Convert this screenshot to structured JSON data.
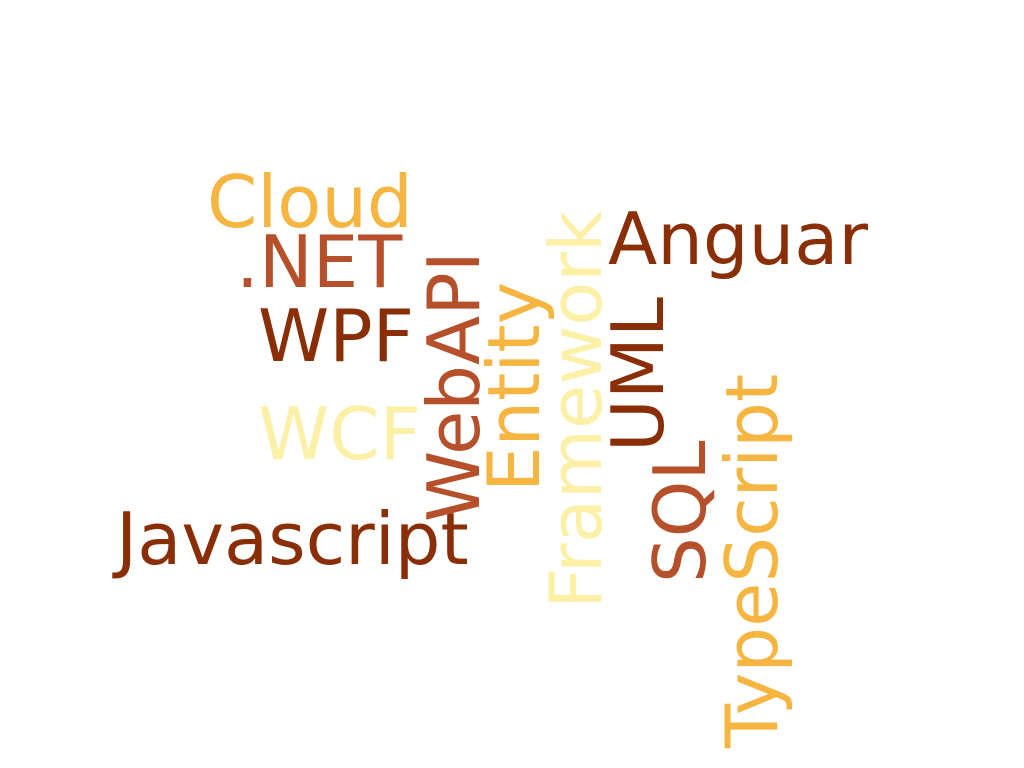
{
  "words": {
    "cloud": {
      "text": "Cloud",
      "color": "#F6B540"
    },
    "net": {
      "text": ".NET",
      "color": "#B5502A"
    },
    "wpf": {
      "text": "WPF",
      "color": "#8A2E08"
    },
    "wcf": {
      "text": "WCF",
      "color": "#FCEFA6"
    },
    "javascript": {
      "text": "Javascript",
      "color": "#8A2E08"
    },
    "anguar": {
      "text": "Anguar",
      "color": "#8A2E08"
    },
    "webapi": {
      "text": "WebAPI",
      "color": "#B5502A"
    },
    "entity": {
      "text": "Entity",
      "color": "#F6B540"
    },
    "framework": {
      "text": "Framework",
      "color": "#FCEFA6"
    },
    "uml": {
      "text": "UML",
      "color": "#8A2E08"
    },
    "sql": {
      "text": "SQL",
      "color": "#B5502A"
    },
    "typescript": {
      "text": "TypeScript",
      "color": "#F6B540"
    }
  }
}
